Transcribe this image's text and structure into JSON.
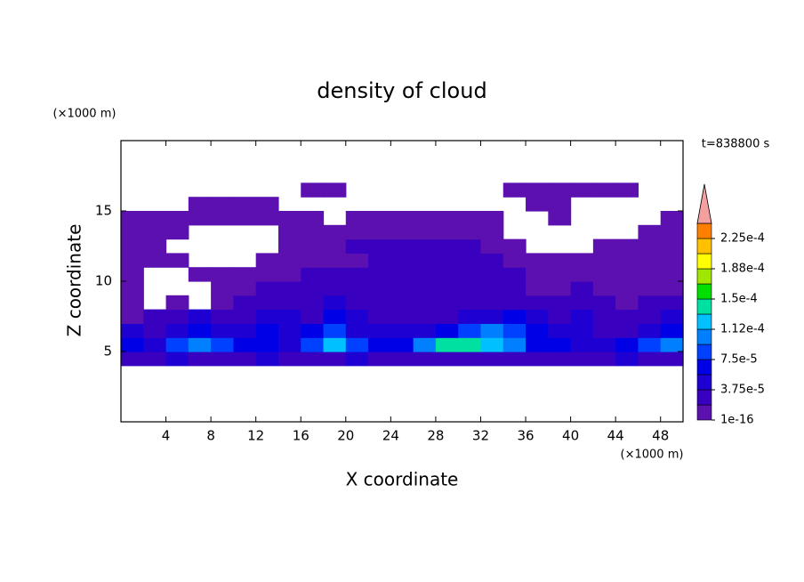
{
  "chart_data": {
    "type": "contour",
    "title": "density of cloud",
    "x_label": "X coordinate",
    "y_label": "Z coordinate",
    "x_unit": "(×1000 m)",
    "y_unit": "(×1000 m)",
    "time_label": "t=838800 s",
    "xlim": [
      0,
      50
    ],
    "ylim": [
      0,
      20
    ],
    "xticks": [
      4,
      8,
      12,
      16,
      20,
      24,
      28,
      32,
      36,
      40,
      44,
      48
    ],
    "yticks": [
      5,
      10,
      15
    ],
    "x": [
      1,
      3,
      5,
      7,
      9,
      11,
      13,
      15,
      17,
      19,
      21,
      23,
      25,
      27,
      29,
      31,
      33,
      35,
      37,
      39,
      41,
      43,
      45,
      47,
      49
    ],
    "y": [
      0.5,
      1.5,
      2.5,
      3.5,
      4.5,
      5.5,
      6.5,
      7.5,
      8.5,
      9.5,
      10.5,
      11.5,
      12.5,
      13.5,
      14.5,
      15.5,
      16.5,
      17.5,
      18.5,
      19.5
    ],
    "z": [
      [
        0,
        0,
        0,
        0,
        0,
        0,
        0,
        0,
        0,
        0,
        0,
        0,
        0,
        0,
        0,
        0,
        0,
        0,
        0,
        0,
        0,
        0,
        0,
        0,
        0
      ],
      [
        0,
        0,
        0,
        0,
        0,
        0,
        0,
        0,
        0,
        0,
        0,
        0,
        0,
        0,
        0,
        0,
        0,
        0,
        0,
        0,
        0,
        0,
        0,
        0,
        0
      ],
      [
        0,
        0,
        0,
        0,
        0,
        0,
        0,
        0,
        0,
        0,
        0,
        0,
        0,
        0,
        0,
        0,
        0,
        0,
        0,
        0,
        0,
        0,
        0,
        0,
        0
      ],
      [
        0,
        0,
        0,
        0,
        0,
        0,
        0,
        0,
        0,
        0,
        0,
        0,
        0,
        0,
        0,
        0,
        0,
        0,
        0,
        0,
        0,
        0,
        0,
        0,
        0
      ],
      [
        2.5e-05,
        2.5e-05,
        4e-05,
        2.5e-05,
        2.5e-05,
        2.5e-05,
        4e-05,
        2.5e-05,
        2.5e-05,
        2.5e-05,
        4e-05,
        2.5e-05,
        2.5e-05,
        2.5e-05,
        2.5e-05,
        2.5e-05,
        2.5e-05,
        2.5e-05,
        2.5e-05,
        2.5e-05,
        2.5e-05,
        2.5e-05,
        4e-05,
        2.5e-05,
        2.5e-05
      ],
      [
        6e-05,
        4e-05,
        8e-05,
        0.0001,
        8e-05,
        6e-05,
        6e-05,
        4e-05,
        8e-05,
        0.00012,
        8e-05,
        6e-05,
        6e-05,
        0.0001,
        0.00014,
        0.00014,
        0.00012,
        0.0001,
        6e-05,
        6e-05,
        4e-05,
        4e-05,
        6e-05,
        8e-05,
        0.0001
      ],
      [
        4e-05,
        2.5e-05,
        4e-05,
        6e-05,
        4e-05,
        4e-05,
        6e-05,
        4e-05,
        6e-05,
        8e-05,
        4e-05,
        4e-05,
        4e-05,
        4e-05,
        6e-05,
        8e-05,
        0.0001,
        8e-05,
        6e-05,
        4e-05,
        4e-05,
        2.5e-05,
        2.5e-05,
        4e-05,
        6e-05
      ],
      [
        1e-05,
        2.5e-05,
        2.5e-05,
        4e-05,
        2.5e-05,
        2.5e-05,
        4e-05,
        4e-05,
        2.5e-05,
        6e-05,
        4e-05,
        2.5e-05,
        2.5e-05,
        2.5e-05,
        2.5e-05,
        4e-05,
        4e-05,
        6e-05,
        4e-05,
        2.5e-05,
        4e-05,
        2.5e-05,
        2.5e-05,
        2.5e-05,
        4e-05
      ],
      [
        1e-05,
        0,
        1e-05,
        0,
        1e-05,
        2.5e-05,
        2.5e-05,
        2.5e-05,
        2.5e-05,
        4e-05,
        2.5e-05,
        2.5e-05,
        2.5e-05,
        2.5e-05,
        2.5e-05,
        2.5e-05,
        2.5e-05,
        2.5e-05,
        2.5e-05,
        2.5e-05,
        2.5e-05,
        2.5e-05,
        1e-05,
        2.5e-05,
        2.5e-05
      ],
      [
        1e-05,
        0,
        0,
        0,
        1e-05,
        1e-05,
        2.5e-05,
        2.5e-05,
        2.5e-05,
        2.5e-05,
        2.5e-05,
        2.5e-05,
        2.5e-05,
        2.5e-05,
        2.5e-05,
        2.5e-05,
        2.5e-05,
        2.5e-05,
        1e-05,
        1e-05,
        2.5e-05,
        1e-05,
        1e-05,
        1e-05,
        1e-05
      ],
      [
        1e-05,
        0,
        0,
        1e-05,
        1e-05,
        1e-05,
        1e-05,
        1e-05,
        2.5e-05,
        2.5e-05,
        2.5e-05,
        2.5e-05,
        2.5e-05,
        2.5e-05,
        2.5e-05,
        2.5e-05,
        2.5e-05,
        2.5e-05,
        1e-05,
        1e-05,
        1e-05,
        1e-05,
        1e-05,
        1e-05,
        1e-05
      ],
      [
        1e-05,
        1e-05,
        1e-05,
        0,
        0,
        0,
        1e-05,
        1e-05,
        1e-05,
        1e-05,
        1e-05,
        2.5e-05,
        2.5e-05,
        2.5e-05,
        2.5e-05,
        2.5e-05,
        2.5e-05,
        1e-05,
        1e-05,
        1e-05,
        1e-05,
        1e-05,
        1e-05,
        1e-05,
        1e-05
      ],
      [
        1e-05,
        1e-05,
        0,
        0,
        0,
        0,
        0,
        1e-05,
        1e-05,
        1e-05,
        2.5e-05,
        2.5e-05,
        2.5e-05,
        2.5e-05,
        2.5e-05,
        2.5e-05,
        1e-05,
        1e-05,
        0,
        0,
        0,
        1e-05,
        1e-05,
        1e-05,
        1e-05
      ],
      [
        1e-05,
        1e-05,
        1e-05,
        0,
        0,
        0,
        0,
        1e-05,
        1e-05,
        1e-05,
        1e-05,
        1e-05,
        1e-05,
        1e-05,
        1e-05,
        1e-05,
        1e-05,
        0,
        0,
        0,
        0,
        0,
        0,
        1e-05,
        1e-05
      ],
      [
        1e-05,
        1e-05,
        1e-05,
        1e-05,
        1e-05,
        1e-05,
        1e-05,
        1e-05,
        1e-05,
        0,
        1e-05,
        1e-05,
        1e-05,
        1e-05,
        1e-05,
        1e-05,
        1e-05,
        0,
        0,
        1e-05,
        0,
        0,
        0,
        0,
        1e-05
      ],
      [
        0,
        0,
        0,
        1e-05,
        1e-05,
        1e-05,
        1e-05,
        0,
        0,
        0,
        0,
        0,
        0,
        0,
        0,
        0,
        0,
        0,
        1e-05,
        1e-05,
        0,
        0,
        0,
        0,
        0
      ],
      [
        0,
        0,
        0,
        0,
        0,
        0,
        0,
        0,
        1e-05,
        1e-05,
        0,
        0,
        0,
        0,
        0,
        0,
        0,
        1e-05,
        1e-05,
        1e-05,
        1e-05,
        1e-05,
        1e-05,
        0,
        0
      ],
      [
        0,
        0,
        0,
        0,
        0,
        0,
        0,
        0,
        0,
        0,
        0,
        0,
        0,
        0,
        0,
        0,
        0,
        0,
        0,
        0,
        0,
        0,
        0,
        0,
        0
      ],
      [
        0,
        0,
        0,
        0,
        0,
        0,
        0,
        0,
        0,
        0,
        0,
        0,
        0,
        0,
        0,
        0,
        0,
        0,
        0,
        0,
        0,
        0,
        0,
        0,
        0
      ],
      [
        0,
        0,
        0,
        0,
        0,
        0,
        0,
        0,
        0,
        0,
        0,
        0,
        0,
        0,
        0,
        0,
        0,
        0,
        0,
        0,
        0,
        0,
        0,
        0,
        0
      ]
    ],
    "levels": [
      1e-16,
      1.875e-05,
      3.75e-05,
      5.625e-05,
      7.5e-05,
      9.375e-05,
      0.0001125,
      0.00013125,
      0.00015,
      0.00016875,
      0.0001875,
      0.00020625,
      0.000225,
      0.00024375
    ],
    "colors": [
      "#5c10b0",
      "#3a00c0",
      "#1e00d2",
      "#0000e6",
      "#0040ff",
      "#0080ff",
      "#00c0ff",
      "#00e0a0",
      "#00e000",
      "#a0e600",
      "#ffff00",
      "#ffc000",
      "#ff8000"
    ],
    "extend_color": "#f4a0a0",
    "colorbar_ticks": [
      {
        "value": 1e-16,
        "label": "1e-16"
      },
      {
        "value": 3.75e-05,
        "label": "3.75e-5"
      },
      {
        "value": 7.5e-05,
        "label": "7.5e-5"
      },
      {
        "value": 0.0001125,
        "label": "1.12e-4"
      },
      {
        "value": 0.00015,
        "label": "1.5e-4"
      },
      {
        "value": 0.0001875,
        "label": "1.88e-4"
      },
      {
        "value": 0.000225,
        "label": "2.25e-4"
      }
    ]
  }
}
